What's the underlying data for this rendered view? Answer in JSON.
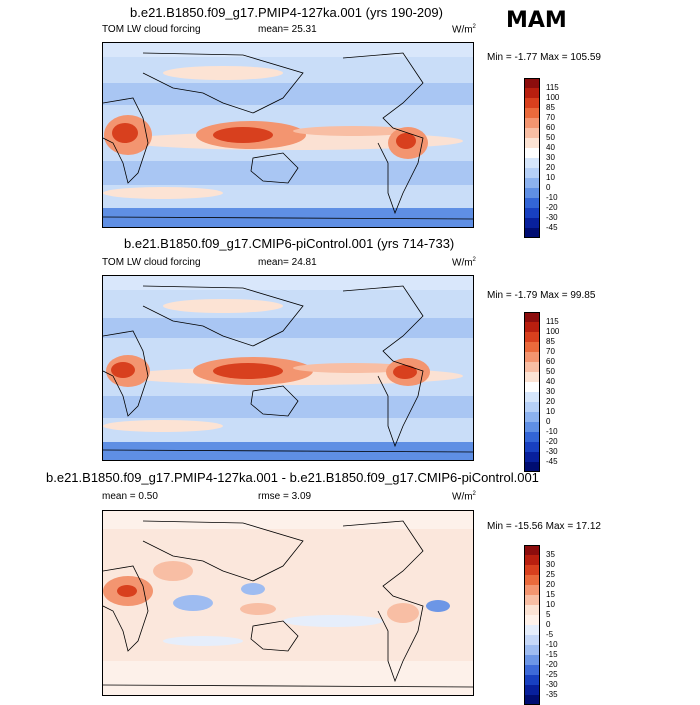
{
  "season": "MAM",
  "panels": [
    {
      "title": "b.e21.B1850.f09_g17.PMIP4-127ka.001 (yrs 190-209)",
      "left": "TOM LW cloud forcing",
      "mid": "mean=  25.31",
      "units": "W/m",
      "units_sup": "2",
      "minmax": "Min =  -1.77 Max = 105.59",
      "cbar_labels": [
        "115",
        "100",
        "85",
        "70",
        "60",
        "50",
        "40",
        "30",
        "20",
        "10",
        "0",
        "-10",
        "-20",
        "-30",
        "-45"
      ],
      "cbar_colors": [
        "#8c0d0d",
        "#b81f0f",
        "#d8401e",
        "#ea6a3c",
        "#f39570",
        "#f8bea4",
        "#fce3d4",
        "#ffffff",
        "#d6e6fb",
        "#b6d0f7",
        "#8cb2ef",
        "#5f8fe4",
        "#3365d6",
        "#1840c0",
        "#08209c",
        "#000d72"
      ]
    },
    {
      "title": "b.e21.B1850.f09_g17.CMIP6-piControl.001 (yrs 714-733)",
      "left": "TOM LW cloud forcing",
      "mid": "mean=  24.81",
      "units": "W/m",
      "units_sup": "2",
      "minmax": "Min =  -1.79 Max =  99.85",
      "cbar_labels": [
        "115",
        "100",
        "85",
        "70",
        "60",
        "50",
        "40",
        "30",
        "20",
        "10",
        "0",
        "-10",
        "-20",
        "-30",
        "-45"
      ],
      "cbar_colors": [
        "#8c0d0d",
        "#b81f0f",
        "#d8401e",
        "#ea6a3c",
        "#f39570",
        "#f8bea4",
        "#fce3d4",
        "#ffffff",
        "#d6e6fb",
        "#b6d0f7",
        "#8cb2ef",
        "#5f8fe4",
        "#3365d6",
        "#1840c0",
        "#08209c",
        "#000d72"
      ]
    },
    {
      "title": "b.e21.B1850.f09_g17.PMIP4-127ka.001 - b.e21.B1850.f09_g17.CMIP6-piControl.001",
      "left": "mean =   0.50",
      "mid": "rmse =   3.09",
      "units": "W/m",
      "units_sup": "2",
      "minmax": "Min = -15.56 Max =  17.12",
      "cbar_labels": [
        "35",
        "30",
        "25",
        "20",
        "15",
        "10",
        "5",
        "0",
        "-5",
        "-10",
        "-15",
        "-20",
        "-25",
        "-30",
        "-35"
      ],
      "cbar_colors": [
        "#8c0d0d",
        "#b81f0f",
        "#d8401e",
        "#ea6a3c",
        "#f39570",
        "#f8bea4",
        "#fce3d4",
        "#fff2ea",
        "#e6eefb",
        "#c6d8f8",
        "#9ebcf1",
        "#6c96e6",
        "#3d6ad8",
        "#1840c0",
        "#08209c",
        "#000d72"
      ]
    }
  ]
}
